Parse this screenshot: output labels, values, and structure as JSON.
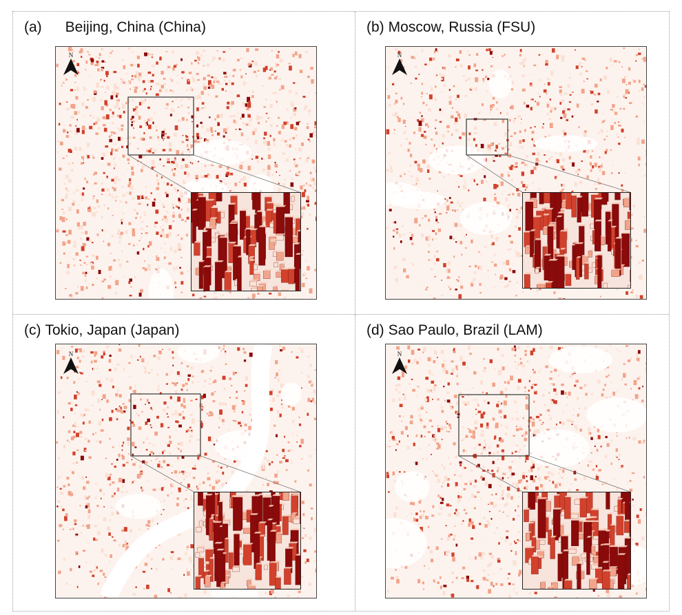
{
  "panels": [
    {
      "id": "a",
      "label": "(a)",
      "title": "Beijing, China (China)"
    },
    {
      "id": "b",
      "label": "(b)",
      "title": "Moscow, Russia (FSU)"
    },
    {
      "id": "c",
      "label": "(c)",
      "title": "Tokio, Japan (Japan)"
    },
    {
      "id": "d",
      "label": "(d)",
      "title": "Sao Paulo, Brazil (LAM)"
    }
  ],
  "north_label": "N",
  "colors": {
    "dark": "#8b0a0a",
    "mid": "#d2412c",
    "light": "#f2a48a",
    "pale": "#fbe0d4",
    "outline": "#444444"
  }
}
